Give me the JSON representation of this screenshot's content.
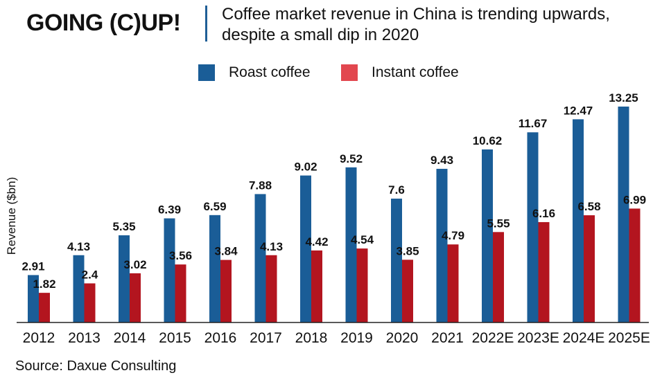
{
  "header": {
    "headline": "GOING (C)UP!",
    "subtitle_line1": "Coffee market revenue in China is trending upwards,",
    "subtitle_line2": "despite a small dip in 2020"
  },
  "source": "Source: Daxue Consulting",
  "colors": {
    "roast": "#1a5d97",
    "instant": "#b3151f",
    "legend_instant": "#e2474f",
    "accent": "#1f5e96"
  },
  "chart_data": {
    "type": "bar",
    "categories": [
      "2012",
      "2013",
      "2014",
      "2015",
      "2016",
      "2017",
      "2018",
      "2019",
      "2020",
      "2021",
      "2022E",
      "2023E",
      "2024E",
      "2025E"
    ],
    "series": [
      {
        "name": "Roast coffee",
        "values": [
          2.91,
          4.13,
          5.35,
          6.39,
          6.59,
          7.88,
          9.02,
          9.52,
          7.6,
          9.43,
          10.62,
          11.67,
          12.47,
          13.25
        ]
      },
      {
        "name": "Instant coffee",
        "values": [
          1.82,
          2.4,
          3.02,
          3.56,
          3.84,
          4.13,
          4.42,
          4.54,
          3.85,
          4.79,
          5.55,
          6.16,
          6.58,
          6.99
        ]
      }
    ],
    "title": "",
    "xlabel": "",
    "ylabel": "Revenue ($bn)",
    "ylim": [
      0,
      13.25
    ],
    "grid": false,
    "legend_position": "top"
  }
}
